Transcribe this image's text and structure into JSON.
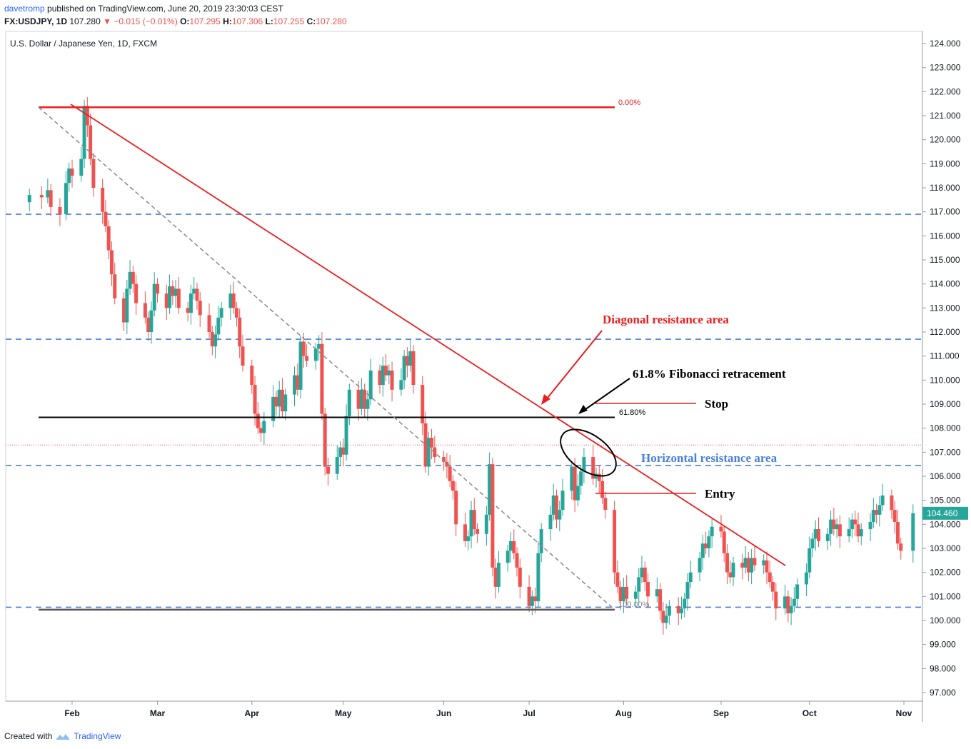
{
  "header": {
    "author": "davetromp",
    "published": "published on TradingView.com, June 20, 2019 23:30:03 CEST",
    "symbol": "FX:USDJPY, 1D",
    "last": "107.280",
    "change": "▼ −0.015 (−0.01%)",
    "o_label": "O:",
    "o": "107.295",
    "h_label": "H:",
    "h": "107.306",
    "l_label": "L:",
    "l": "107.255",
    "c_label": "C:",
    "c": "107.280"
  },
  "footer": {
    "created": "Created with",
    "brand": "TradingView"
  },
  "colors": {
    "up": "#26a69a",
    "down": "#ef5350",
    "red": "#ee1c1c",
    "blue": "#4a7fe0",
    "black": "#000000",
    "price_tag": "#26a69a"
  },
  "chart_data": {
    "type": "candlestick",
    "title": "U.S. Dollar / Japanese Yen, 1D, FXCM",
    "ylim": [
      96.6,
      124.4
    ],
    "y_ticks": [
      "124.000",
      "123.000",
      "122.000",
      "121.000",
      "120.000",
      "119.000",
      "118.000",
      "117.000",
      "116.000",
      "115.000",
      "114.000",
      "113.000",
      "112.000",
      "111.000",
      "110.000",
      "109.000",
      "108.000",
      "107.000",
      "106.000",
      "105.000",
      "104.000",
      "103.000",
      "102.000",
      "101.000",
      "100.000",
      "99.000",
      "98.000",
      "97.000"
    ],
    "x_labels": [
      {
        "label": "Feb",
        "date": "2019-02-01"
      },
      {
        "label": "Mar",
        "date": "2019-03-01"
      },
      {
        "label": "Apr",
        "date": "2019-04-01"
      },
      {
        "label": "May",
        "date": "2019-05-01"
      },
      {
        "label": "Jun",
        "date": "2019-06-03"
      },
      {
        "label": "Jul",
        "date": "2019-07-01"
      },
      {
        "label": "Aug",
        "date": "2019-08-01"
      },
      {
        "label": "Sep",
        "date": "2019-09-02"
      },
      {
        "label": "Oct",
        "date": "2019-10-01"
      },
      {
        "label": "Nov",
        "date": "2019-11-01"
      }
    ],
    "last_price": "104.460",
    "close_series": [
      [
        "2019-01-18",
        117.7
      ],
      [
        "2019-01-22",
        117.6
      ],
      [
        "2019-01-24",
        117.9
      ],
      [
        "2019-01-25",
        117.2
      ],
      [
        "2019-01-28",
        116.9
      ],
      [
        "2019-01-30",
        118.2
      ],
      [
        "2019-01-31",
        118.8
      ],
      [
        "2019-02-01",
        118.5
      ],
      [
        "2019-02-04",
        119.2
      ],
      [
        "2019-02-05",
        121.4
      ],
      [
        "2019-02-06",
        120.6
      ],
      [
        "2019-02-07",
        119.2
      ],
      [
        "2019-02-08",
        118.0
      ],
      [
        "2019-02-11",
        117.0
      ],
      [
        "2019-02-12",
        116.4
      ],
      [
        "2019-02-13",
        115.4
      ],
      [
        "2019-02-14",
        114.4
      ],
      [
        "2019-02-15",
        113.4
      ],
      [
        "2019-02-18",
        112.4
      ],
      [
        "2019-02-19",
        113.8
      ],
      [
        "2019-02-20",
        114.5
      ],
      [
        "2019-02-21",
        114.0
      ],
      [
        "2019-02-22",
        113.2
      ],
      [
        "2019-02-25",
        112.6
      ],
      [
        "2019-02-26",
        112.0
      ],
      [
        "2019-02-27",
        112.9
      ],
      [
        "2019-02-28",
        114.0
      ],
      [
        "2019-03-01",
        113.6
      ],
      [
        "2019-03-04",
        113.0
      ],
      [
        "2019-03-05",
        113.9
      ],
      [
        "2019-03-06",
        113.5
      ],
      [
        "2019-03-07",
        113.8
      ],
      [
        "2019-03-08",
        113.0
      ],
      [
        "2019-03-11",
        112.8
      ],
      [
        "2019-03-12",
        113.6
      ],
      [
        "2019-03-13",
        113.8
      ],
      [
        "2019-03-14",
        113.3
      ],
      [
        "2019-03-15",
        112.7
      ],
      [
        "2019-03-18",
        112.0
      ],
      [
        "2019-03-19",
        111.4
      ],
      [
        "2019-03-20",
        111.9
      ],
      [
        "2019-03-21",
        112.6
      ],
      [
        "2019-03-22",
        113.0
      ],
      [
        "2019-03-25",
        113.6
      ],
      [
        "2019-03-26",
        113.0
      ],
      [
        "2019-03-27",
        112.6
      ],
      [
        "2019-03-28",
        111.4
      ],
      [
        "2019-03-29",
        110.6
      ],
      [
        "2019-04-01",
        109.8
      ],
      [
        "2019-04-02",
        108.6
      ],
      [
        "2019-04-03",
        108.0
      ],
      [
        "2019-04-04",
        107.8
      ],
      [
        "2019-04-05",
        108.3
      ],
      [
        "2019-04-08",
        109.3
      ],
      [
        "2019-04-09",
        108.9
      ],
      [
        "2019-04-10",
        109.6
      ],
      [
        "2019-04-11",
        108.7
      ],
      [
        "2019-04-12",
        109.4
      ],
      [
        "2019-04-15",
        110.2
      ],
      [
        "2019-04-16",
        109.6
      ],
      [
        "2019-04-17",
        111.6
      ],
      [
        "2019-04-18",
        111.0
      ],
      [
        "2019-04-19",
        110.8
      ],
      [
        "2019-04-22",
        111.3
      ],
      [
        "2019-04-23",
        111.5
      ],
      [
        "2019-04-24",
        108.6
      ],
      [
        "2019-04-25",
        106.4
      ],
      [
        "2019-04-26",
        106.1
      ],
      [
        "2019-04-29",
        106.8
      ],
      [
        "2019-04-30",
        107.2
      ],
      [
        "2019-05-01",
        106.9
      ],
      [
        "2019-05-02",
        108.5
      ],
      [
        "2019-05-03",
        109.6
      ],
      [
        "2019-05-06",
        108.8
      ],
      [
        "2019-05-07",
        109.6
      ],
      [
        "2019-05-08",
        108.8
      ],
      [
        "2019-05-09",
        109.2
      ],
      [
        "2019-05-10",
        110.4
      ],
      [
        "2019-05-13",
        109.8
      ],
      [
        "2019-05-14",
        110.6
      ],
      [
        "2019-05-15",
        110.2
      ],
      [
        "2019-05-16",
        110.4
      ],
      [
        "2019-05-17",
        109.6
      ],
      [
        "2019-05-20",
        110.0
      ],
      [
        "2019-05-21",
        111.0
      ],
      [
        "2019-05-22",
        110.6
      ],
      [
        "2019-05-23",
        111.2
      ],
      [
        "2019-05-24",
        109.8
      ],
      [
        "2019-05-27",
        108.2
      ],
      [
        "2019-05-28",
        106.4
      ],
      [
        "2019-05-29",
        107.6
      ],
      [
        "2019-05-30",
        107.2
      ],
      [
        "2019-05-31",
        106.8
      ],
      [
        "2019-06-03",
        106.6
      ],
      [
        "2019-06-04",
        106.4
      ],
      [
        "2019-06-05",
        105.8
      ],
      [
        "2019-06-06",
        105.4
      ],
      [
        "2019-06-07",
        104.0
      ],
      [
        "2019-06-10",
        103.3
      ],
      [
        "2019-06-11",
        103.5
      ],
      [
        "2019-06-12",
        104.6
      ],
      [
        "2019-06-13",
        103.8
      ],
      [
        "2019-06-14",
        103.6
      ],
      [
        "2019-06-17",
        104.4
      ],
      [
        "2019-06-18",
        106.5
      ],
      [
        "2019-06-19",
        102.2
      ],
      [
        "2019-06-20",
        101.4
      ],
      [
        "2019-06-21",
        102.4
      ],
      [
        "2019-06-24",
        102.9
      ],
      [
        "2019-06-25",
        103.3
      ],
      [
        "2019-06-26",
        102.8
      ],
      [
        "2019-06-27",
        102.2
      ],
      [
        "2019-06-28",
        101.4
      ],
      [
        "2019-07-01",
        100.6
      ],
      [
        "2019-07-02",
        101.0
      ],
      [
        "2019-07-03",
        100.8
      ],
      [
        "2019-07-04",
        102.8
      ],
      [
        "2019-07-05",
        103.8
      ],
      [
        "2019-07-08",
        104.4
      ],
      [
        "2019-07-09",
        105.2
      ],
      [
        "2019-07-10",
        104.2
      ],
      [
        "2019-07-11",
        104.6
      ],
      [
        "2019-07-12",
        105.4
      ],
      [
        "2019-07-15",
        106.4
      ],
      [
        "2019-07-16",
        105.0
      ],
      [
        "2019-07-17",
        105.6
      ],
      [
        "2019-07-18",
        106.2
      ],
      [
        "2019-07-19",
        106.8
      ],
      [
        "2019-07-22",
        105.9
      ],
      [
        "2019-07-23",
        106.1
      ],
      [
        "2019-07-24",
        105.8
      ],
      [
        "2019-07-25",
        105.1
      ],
      [
        "2019-07-26",
        104.6
      ],
      [
        "2019-07-29",
        102.0
      ],
      [
        "2019-07-30",
        101.4
      ],
      [
        "2019-07-31",
        100.8
      ],
      [
        "2019-08-01",
        101.4
      ],
      [
        "2019-08-02",
        100.9
      ],
      [
        "2019-08-05",
        101.2
      ],
      [
        "2019-08-06",
        101.8
      ],
      [
        "2019-08-07",
        102.2
      ],
      [
        "2019-08-08",
        101.6
      ],
      [
        "2019-08-09",
        101.0
      ],
      [
        "2019-08-12",
        101.3
      ],
      [
        "2019-08-13",
        100.4
      ],
      [
        "2019-08-14",
        99.9
      ],
      [
        "2019-08-15",
        100.2
      ],
      [
        "2019-08-16",
        100.6
      ],
      [
        "2019-08-19",
        100.3
      ],
      [
        "2019-08-20",
        100.5
      ],
      [
        "2019-08-21",
        100.9
      ],
      [
        "2019-08-22",
        101.6
      ],
      [
        "2019-08-23",
        102.0
      ],
      [
        "2019-08-26",
        102.6
      ],
      [
        "2019-08-27",
        103.2
      ],
      [
        "2019-08-28",
        103.0
      ],
      [
        "2019-08-29",
        103.5
      ],
      [
        "2019-08-30",
        103.9
      ],
      [
        "2019-09-02",
        103.7
      ],
      [
        "2019-09-03",
        102.8
      ],
      [
        "2019-09-04",
        102.0
      ],
      [
        "2019-09-05",
        101.8
      ],
      [
        "2019-09-06",
        102.4
      ],
      [
        "2019-09-09",
        102.2
      ],
      [
        "2019-09-10",
        102.6
      ],
      [
        "2019-09-11",
        102.0
      ],
      [
        "2019-09-12",
        102.6
      ],
      [
        "2019-09-13",
        102.3
      ],
      [
        "2019-09-16",
        102.5
      ],
      [
        "2019-09-17",
        102.0
      ],
      [
        "2019-09-18",
        101.6
      ],
      [
        "2019-09-19",
        101.2
      ],
      [
        "2019-09-20",
        100.5
      ],
      [
        "2019-09-23",
        101.0
      ],
      [
        "2019-09-24",
        100.3
      ],
      [
        "2019-09-25",
        100.6
      ],
      [
        "2019-09-26",
        100.9
      ],
      [
        "2019-09-27",
        101.5
      ],
      [
        "2019-09-30",
        102.0
      ],
      [
        "2019-10-01",
        103.0
      ],
      [
        "2019-10-02",
        103.4
      ],
      [
        "2019-10-03",
        103.8
      ],
      [
        "2019-10-04",
        103.3
      ],
      [
        "2019-10-07",
        103.6
      ],
      [
        "2019-10-08",
        104.2
      ],
      [
        "2019-10-09",
        103.8
      ],
      [
        "2019-10-10",
        104.0
      ],
      [
        "2019-10-11",
        103.5
      ],
      [
        "2019-10-14",
        103.8
      ],
      [
        "2019-10-15",
        104.2
      ],
      [
        "2019-10-16",
        104.0
      ],
      [
        "2019-10-17",
        103.5
      ],
      [
        "2019-10-18",
        103.8
      ],
      [
        "2019-10-21",
        104.1
      ],
      [
        "2019-10-22",
        104.6
      ],
      [
        "2019-10-23",
        104.4
      ],
      [
        "2019-10-24",
        104.8
      ],
      [
        "2019-10-25",
        105.2
      ],
      [
        "2019-10-28",
        104.6
      ],
      [
        "2019-10-29",
        104.1
      ],
      [
        "2019-10-30",
        103.2
      ],
      [
        "2019-10-31",
        102.9
      ],
      [
        "2019-11-04",
        104.46
      ]
    ],
    "annotations": [
      {
        "text": "0.00%",
        "color": "#ee1c1c",
        "level": 121.35
      },
      {
        "text": "61.80%",
        "color": "#000000",
        "level": 108.45
      },
      {
        "text": "100.00%",
        "color": "#888888",
        "level": 100.45
      },
      {
        "text": "Diagonal resistance area",
        "color": "#ee1c1c"
      },
      {
        "text": "61.8% Fibonacci retracement",
        "color": "#000000"
      },
      {
        "text": "Stop",
        "color": "#000000"
      },
      {
        "text": "Horizontal resistance area",
        "color": "#4a7fe0"
      },
      {
        "text": "Entry",
        "color": "#000000"
      }
    ],
    "horizontal_levels": [
      116.9,
      111.7,
      106.45,
      100.55
    ],
    "grid": false,
    "legend": "none"
  }
}
